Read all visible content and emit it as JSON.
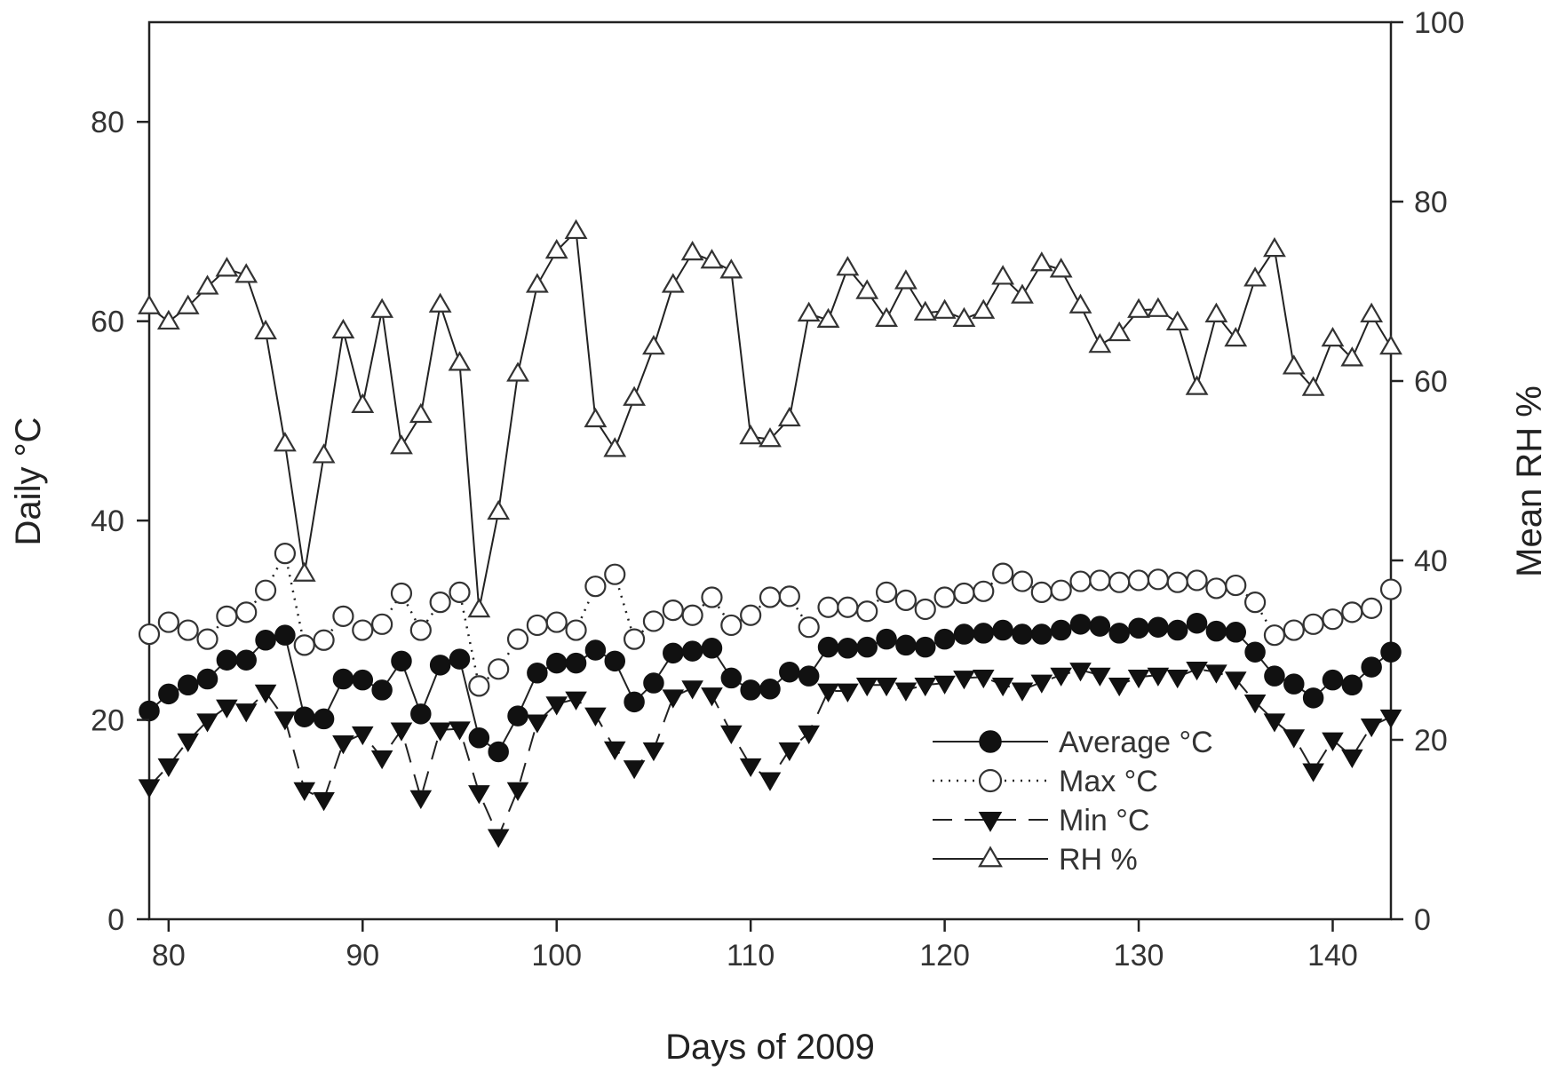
{
  "chart_data": {
    "type": "line",
    "xlabel": "Days of 2009",
    "ylabel_left": "Daily °C",
    "ylabel_right": "Mean RH %",
    "xlim": [
      79,
      143
    ],
    "ylim_left": [
      0,
      90
    ],
    "ylim_right": [
      0,
      100
    ],
    "x_ticks": [
      80,
      90,
      100,
      110,
      120,
      130,
      140
    ],
    "y_left_ticks": [
      0,
      20,
      40,
      60,
      80
    ],
    "y_right_ticks": [
      0,
      20,
      40,
      60,
      80,
      100
    ],
    "grid": false,
    "legend_position": "bottom-right",
    "x": [
      79,
      80,
      81,
      82,
      83,
      84,
      85,
      86,
      87,
      88,
      89,
      90,
      91,
      92,
      93,
      94,
      95,
      96,
      97,
      98,
      99,
      100,
      101,
      102,
      103,
      104,
      105,
      106,
      107,
      108,
      109,
      110,
      111,
      112,
      113,
      114,
      115,
      116,
      117,
      118,
      119,
      120,
      121,
      122,
      123,
      124,
      125,
      126,
      127,
      128,
      129,
      130,
      131,
      132,
      133,
      134,
      135,
      136,
      137,
      138,
      139,
      140,
      141,
      142,
      143
    ],
    "series": [
      {
        "name": "Average °C",
        "axis": "left",
        "marker": "filled-circle",
        "line": "solid",
        "values": [
          20.9,
          22.6,
          23.5,
          24.1,
          26.0,
          26.0,
          28.0,
          28.5,
          20.3,
          20.1,
          24.1,
          24.0,
          23.0,
          25.9,
          20.6,
          25.5,
          26.1,
          18.2,
          16.8,
          20.4,
          24.7,
          25.7,
          25.7,
          27.0,
          25.9,
          21.8,
          23.7,
          26.7,
          26.9,
          27.2,
          24.2,
          23.0,
          23.1,
          24.8,
          24.4,
          27.3,
          27.2,
          27.3,
          28.1,
          27.5,
          27.3,
          28.1,
          28.6,
          28.7,
          29.0,
          28.6,
          28.6,
          29.0,
          29.6,
          29.4,
          28.7,
          29.2,
          29.3,
          29.0,
          29.7,
          28.9,
          28.8,
          26.8,
          24.4,
          23.6,
          22.2,
          24.0,
          23.5,
          25.3,
          26.8
        ]
      },
      {
        "name": "Max °C",
        "axis": "left",
        "marker": "open-circle",
        "line": "dotted",
        "values": [
          28.6,
          29.8,
          29.0,
          28.1,
          30.4,
          30.8,
          33.0,
          36.7,
          27.5,
          28.0,
          30.4,
          29.0,
          29.6,
          32.7,
          29.0,
          31.8,
          32.8,
          23.4,
          25.1,
          28.1,
          29.5,
          29.8,
          29.0,
          33.4,
          34.6,
          28.1,
          29.9,
          31.0,
          30.5,
          32.3,
          29.5,
          30.5,
          32.3,
          32.4,
          29.3,
          31.3,
          31.3,
          30.9,
          32.8,
          32.0,
          31.1,
          32.3,
          32.7,
          32.9,
          34.7,
          33.9,
          32.8,
          33.0,
          33.9,
          34.0,
          33.8,
          34.0,
          34.1,
          33.8,
          34.0,
          33.2,
          33.5,
          31.8,
          28.5,
          29.0,
          29.6,
          30.1,
          30.8,
          31.2,
          33.1
        ]
      },
      {
        "name": "Min °C",
        "axis": "left",
        "marker": "filled-down-triangle",
        "line": "dashed",
        "values": [
          13.3,
          15.4,
          17.9,
          19.9,
          21.3,
          20.9,
          22.8,
          20.1,
          13.0,
          12.0,
          17.7,
          18.6,
          16.2,
          19.0,
          12.2,
          19.0,
          19.1,
          12.7,
          8.3,
          13.0,
          19.8,
          21.6,
          22.1,
          20.5,
          17.1,
          15.2,
          17.0,
          22.3,
          23.2,
          22.5,
          18.7,
          15.4,
          14.0,
          17.0,
          18.7,
          22.9,
          22.9,
          23.5,
          23.5,
          23.0,
          23.5,
          23.7,
          24.2,
          24.3,
          23.5,
          23.0,
          23.8,
          24.5,
          25.0,
          24.5,
          23.5,
          24.3,
          24.5,
          24.3,
          25.1,
          24.8,
          24.1,
          21.8,
          19.9,
          18.3,
          14.9,
          18.0,
          16.3,
          19.4,
          20.3
        ]
      },
      {
        "name": "RH %",
        "axis": "right",
        "marker": "open-up-triangle",
        "line": "solid",
        "values": [
          68.3,
          66.6,
          68.3,
          70.5,
          72.5,
          71.8,
          65.5,
          53.0,
          38.5,
          51.7,
          65.6,
          57.3,
          67.9,
          52.7,
          56.2,
          68.5,
          62.0,
          34.5,
          45.4,
          60.8,
          70.7,
          74.5,
          76.7,
          55.7,
          52.4,
          58.1,
          63.8,
          70.7,
          74.3,
          73.4,
          72.3,
          53.8,
          53.5,
          55.8,
          67.5,
          66.8,
          72.6,
          70.0,
          66.9,
          71.1,
          67.6,
          67.8,
          66.9,
          67.8,
          71.6,
          69.5,
          73.1,
          72.4,
          68.4,
          64.0,
          65.3,
          67.9,
          68.0,
          66.5,
          59.3,
          67.4,
          64.7,
          71.4,
          74.7,
          61.6,
          59.2,
          64.7,
          62.5,
          67.4,
          63.8
        ]
      }
    ]
  }
}
